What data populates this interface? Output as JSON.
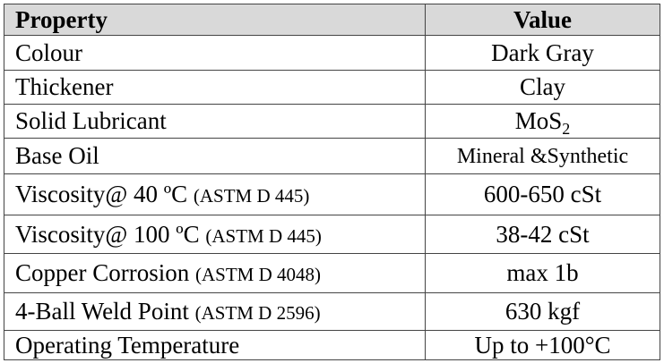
{
  "table": {
    "header": [
      "Property",
      "Value"
    ],
    "rows": [
      {
        "property": "Colour",
        "value": "Dark Gray"
      },
      {
        "property": "Thickener",
        "value": "Clay"
      },
      {
        "property": "Solid Lubricant",
        "value": "MoS",
        "value_subscript": "2"
      },
      {
        "property": "Base Oil",
        "value": "Mineral &Synthetic"
      },
      {
        "property": "Viscosity@ 40 ºC",
        "standard": "(ASTM D 445)",
        "value": "600-650 cSt"
      },
      {
        "property": "Viscosity@ 100 ºC",
        "standard": "(ASTM D 445)",
        "value": "38-42 cSt"
      },
      {
        "property": "Copper Corrosion",
        "standard": "(ASTM D 4048)",
        "value": "max 1b"
      },
      {
        "property": "4-Ball Weld Point",
        "standard": "(ASTM D 2596)",
        "value": "630 kgf"
      },
      {
        "property": "Operating Temperature",
        "value": "Up to +100°C"
      }
    ]
  }
}
